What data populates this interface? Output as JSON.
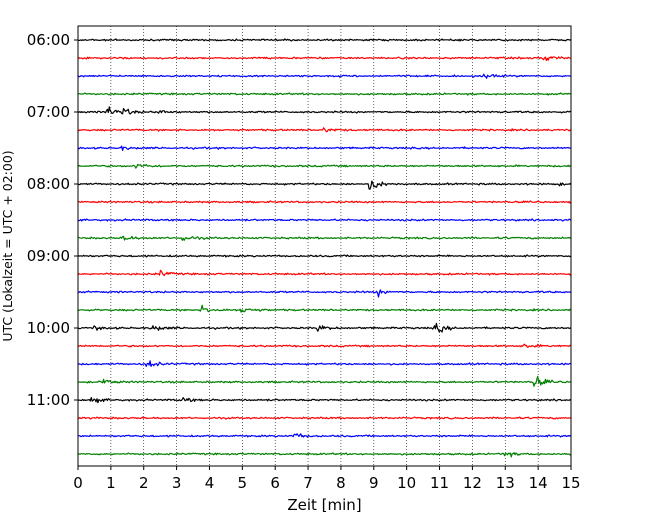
{
  "chart_data": {
    "type": "line",
    "chart_kind": "helicorder (stacked seismogram traces)",
    "xlabel": "Zeit  [min]",
    "ylabel": "UTC (Lokalzeit = UTC + 02:00)",
    "xlim": [
      0,
      15
    ],
    "x_ticks": [
      "0",
      "1",
      "2",
      "3",
      "4",
      "5",
      "6",
      "7",
      "8",
      "9",
      "10",
      "11",
      "12",
      "13",
      "14",
      "15"
    ],
    "y_tick_labels": [
      "06:00",
      "07:00",
      "08:00",
      "09:00",
      "10:00",
      "11:00"
    ],
    "grid": {
      "x_vertical_dotted": true,
      "y": false
    },
    "trace_colors_cycle": [
      "#000000",
      "#ff0000",
      "#0000ff",
      "#008000"
    ],
    "trace_minutes": 15,
    "traces": [
      {
        "start": "06:00",
        "color": "#000000",
        "events": []
      },
      {
        "start": "06:15",
        "color": "#ff0000",
        "events": [
          {
            "t": 14.2,
            "amp": 0.7
          }
        ]
      },
      {
        "start": "06:30",
        "color": "#0000ff",
        "events": [
          {
            "t": 12.3,
            "amp": 0.5
          }
        ]
      },
      {
        "start": "06:45",
        "color": "#008000",
        "events": []
      },
      {
        "start": "07:00",
        "color": "#000000",
        "events": [
          {
            "t": 0.9,
            "amp": 1.0
          },
          {
            "t": 1.4,
            "amp": 0.5
          },
          {
            "t": 2.5,
            "amp": 0.3
          }
        ]
      },
      {
        "start": "07:15",
        "color": "#ff0000",
        "events": [
          {
            "t": 7.5,
            "amp": 0.4
          }
        ]
      },
      {
        "start": "07:30",
        "color": "#0000ff",
        "events": [
          {
            "t": 1.3,
            "amp": 0.3
          }
        ]
      },
      {
        "start": "07:45",
        "color": "#008000",
        "events": [
          {
            "t": 1.8,
            "amp": 0.6
          }
        ]
      },
      {
        "start": "08:00",
        "color": "#000000",
        "events": [
          {
            "t": 8.9,
            "amp": 1.3
          },
          {
            "t": 14.5,
            "amp": 0.3
          }
        ]
      },
      {
        "start": "08:15",
        "color": "#ff0000",
        "events": []
      },
      {
        "start": "08:30",
        "color": "#0000ff",
        "events": []
      },
      {
        "start": "08:45",
        "color": "#008000",
        "events": [
          {
            "t": 1.4,
            "amp": 0.5
          },
          {
            "t": 3.2,
            "amp": 0.6
          }
        ]
      },
      {
        "start": "09:00",
        "color": "#000000",
        "events": []
      },
      {
        "start": "09:15",
        "color": "#ff0000",
        "events": [
          {
            "t": 2.5,
            "amp": 0.5
          }
        ]
      },
      {
        "start": "09:30",
        "color": "#0000ff",
        "events": [
          {
            "t": 9.1,
            "amp": 0.6
          }
        ]
      },
      {
        "start": "09:45",
        "color": "#008000",
        "events": [
          {
            "t": 3.8,
            "amp": 0.9
          },
          {
            "t": 5.0,
            "amp": 0.7
          }
        ]
      },
      {
        "start": "10:00",
        "color": "#000000",
        "events": [
          {
            "t": 2.3,
            "amp": 0.6
          },
          {
            "t": 7.3,
            "amp": 0.5
          },
          {
            "t": 10.9,
            "amp": 0.9
          },
          {
            "t": 0.5,
            "amp": 0.3
          }
        ]
      },
      {
        "start": "10:15",
        "color": "#ff0000",
        "events": [
          {
            "t": 13.6,
            "amp": 0.5
          }
        ]
      },
      {
        "start": "10:30",
        "color": "#0000ff",
        "events": [
          {
            "t": 2.1,
            "amp": 0.7
          }
        ]
      },
      {
        "start": "10:45",
        "color": "#008000",
        "events": [
          {
            "t": 0.8,
            "amp": 0.5
          },
          {
            "t": 13.9,
            "amp": 1.1
          }
        ]
      },
      {
        "start": "11:00",
        "color": "#000000",
        "events": [
          {
            "t": 0.4,
            "amp": 0.5
          },
          {
            "t": 3.2,
            "amp": 0.4
          }
        ]
      },
      {
        "start": "11:15",
        "color": "#ff0000",
        "events": []
      },
      {
        "start": "11:30",
        "color": "#0000ff",
        "events": [
          {
            "t": 6.6,
            "amp": 0.5
          }
        ]
      },
      {
        "start": "11:45",
        "color": "#008000",
        "events": [
          {
            "t": 13.0,
            "amp": 0.5
          },
          {
            "t": 15.0,
            "amp": 0.4
          }
        ]
      }
    ]
  }
}
